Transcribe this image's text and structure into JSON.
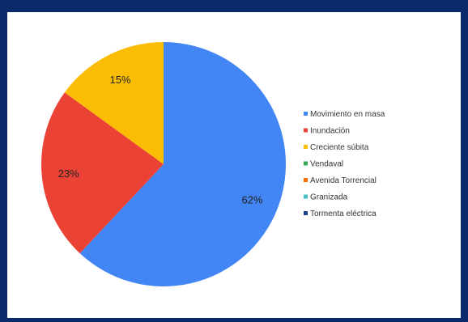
{
  "chart_data": {
    "type": "pie",
    "title": "",
    "categories": [
      "Movimiento en masa",
      "Inundación",
      "Creciente súbita",
      "Vendaval",
      "Avenida Torrencial",
      "Granizada",
      "Tormenta eléctrica"
    ],
    "values": [
      62,
      23,
      15,
      0,
      0,
      0,
      0
    ],
    "labels": [
      "62%",
      "23%",
      "15%",
      "",
      "",
      "",
      ""
    ],
    "colors": [
      "#4285f4",
      "#ea4335",
      "#fbbc04",
      "#34a853",
      "#ff6d01",
      "#46bdc6",
      "#1a3e8f"
    ],
    "legend_position": "right"
  }
}
